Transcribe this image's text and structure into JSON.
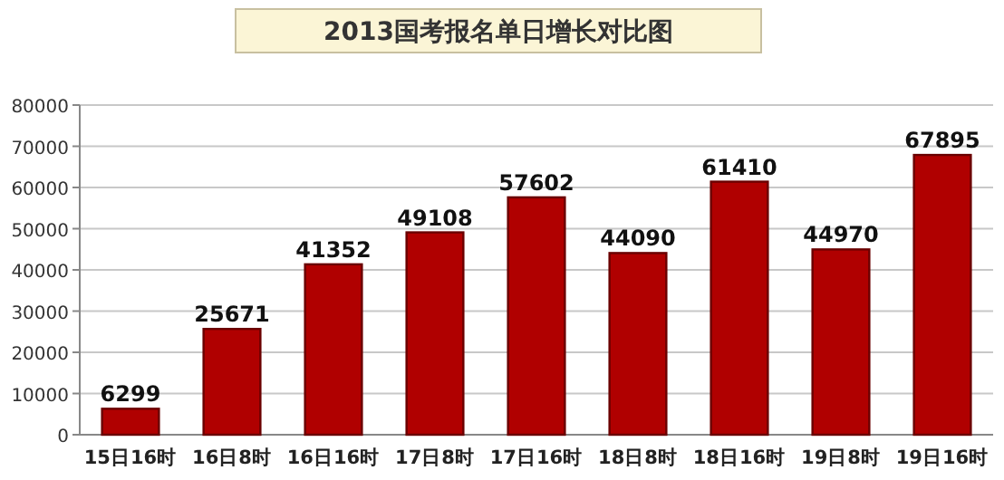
{
  "chart_data": {
    "type": "bar",
    "title": "2013国考报名单日增长对比图",
    "categories": [
      "15日16时",
      "16日8时",
      "16日16时",
      "17日8时",
      "17日16时",
      "18日8时",
      "18日16时",
      "19日8时",
      "19日16时"
    ],
    "values": [
      6299,
      25671,
      41352,
      49108,
      57602,
      44090,
      61410,
      44970,
      67895
    ],
    "color": "#b00000",
    "ylim": [
      0,
      80000
    ],
    "yticks": [
      0,
      10000,
      20000,
      30000,
      40000,
      50000,
      60000,
      70000,
      80000
    ],
    "grid": "y",
    "data_labels": true
  }
}
